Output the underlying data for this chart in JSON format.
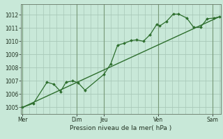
{
  "title": "",
  "xlabel": "Pression niveau de la mer( hPa )",
  "bg_color": "#c8e8d8",
  "grid_color": "#a8c8b8",
  "line_color": "#2d6e2d",
  "trend_color": "#2d6e2d",
  "ylim": [
    1004.5,
    1012.8
  ],
  "yticks": [
    1005,
    1006,
    1007,
    1008,
    1009,
    1010,
    1011,
    1012
  ],
  "vline_x": [
    0,
    2,
    3,
    5,
    7
  ],
  "xtick_pos": [
    0,
    2,
    3,
    5,
    7
  ],
  "xtick_lab": [
    "Mer",
    "Dim",
    "Jeu",
    "Ven",
    "Sam"
  ],
  "xlim": [
    -0.05,
    7.3
  ],
  "pressure_x": [
    0,
    0.4,
    0.9,
    1.15,
    1.4,
    1.6,
    1.85,
    2.05,
    2.3,
    3.0,
    3.25,
    3.5,
    3.75,
    4.0,
    4.2,
    4.45,
    4.7,
    4.95,
    5.05,
    5.3,
    5.55,
    5.75,
    6.05,
    6.3,
    6.55,
    6.8,
    7.05,
    7.25
  ],
  "pressure_y": [
    1005.0,
    1005.3,
    1006.9,
    1006.75,
    1006.2,
    1006.9,
    1007.0,
    1006.85,
    1006.3,
    1007.5,
    1008.3,
    1009.7,
    1009.85,
    1010.05,
    1010.1,
    1010.0,
    1010.5,
    1011.3,
    1011.15,
    1011.5,
    1012.05,
    1012.05,
    1011.75,
    1011.05,
    1011.05,
    1011.7,
    1011.75,
    1011.85
  ],
  "trend_x": [
    0,
    7.25
  ],
  "trend_y": [
    1005.0,
    1011.85
  ]
}
